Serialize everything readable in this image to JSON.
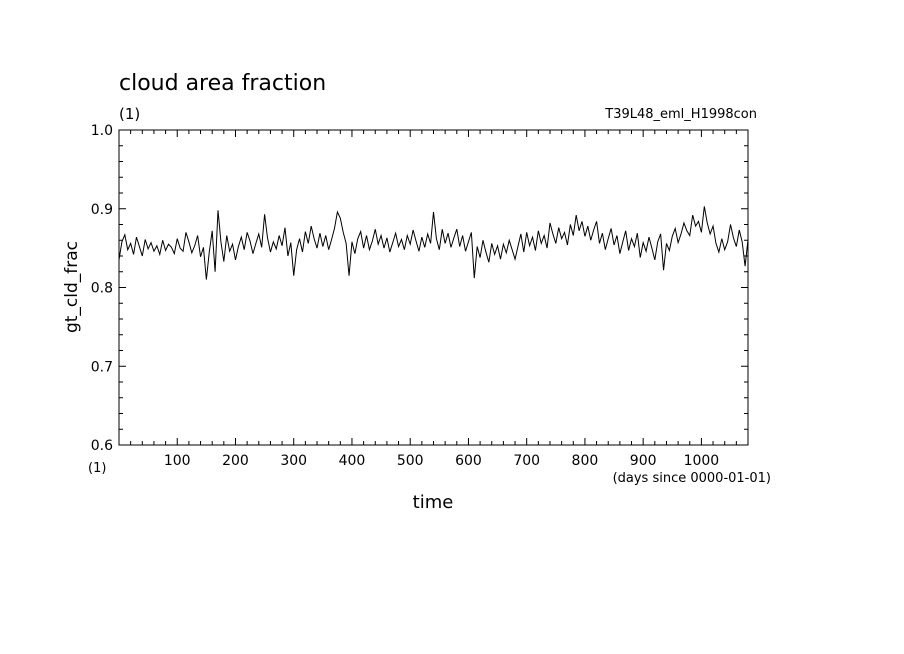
{
  "chart_data": {
    "type": "line",
    "title": "cloud area fraction",
    "subtitle_left": "(1)",
    "subtitle_right": "T39L48_eml_H1998con",
    "xlabel": "time",
    "xunit_left": "(1)",
    "xunit_right": "(days since 0000-01-01)",
    "ylabel": "gt_cld_frac",
    "xlim": [
      0,
      1080
    ],
    "ylim": [
      0.6,
      1.0
    ],
    "xticks": [
      100,
      200,
      300,
      400,
      500,
      600,
      700,
      800,
      900,
      1000
    ],
    "yticks": [
      "0.6",
      "0.7",
      "0.8",
      "0.9",
      "1.0"
    ],
    "grid": false,
    "line_color": "#000000",
    "series": [
      {
        "x": [
          0,
          5,
          10,
          15,
          20,
          25,
          30,
          35,
          40,
          45,
          50,
          55,
          60,
          65,
          70,
          75,
          80,
          85,
          90,
          95,
          100,
          105,
          110,
          115,
          120,
          125,
          130,
          135,
          140,
          145,
          150,
          155,
          160,
          165,
          170,
          175,
          180,
          185,
          190,
          195,
          200,
          205,
          210,
          215,
          220,
          225,
          230,
          235,
          240,
          245,
          250,
          255,
          260,
          265,
          270,
          275,
          280,
          285,
          290,
          295,
          300,
          305,
          310,
          315,
          320,
          325,
          330,
          335,
          340,
          345,
          350,
          355,
          360,
          365,
          370,
          375,
          380,
          385,
          390,
          395,
          400,
          405,
          410,
          415,
          420,
          425,
          430,
          435,
          440,
          445,
          450,
          455,
          460,
          465,
          470,
          475,
          480,
          485,
          490,
          495,
          500,
          505,
          510,
          515,
          520,
          525,
          530,
          535,
          540,
          545,
          550,
          555,
          560,
          565,
          570,
          575,
          580,
          585,
          590,
          595,
          600,
          605,
          610,
          615,
          620,
          625,
          630,
          635,
          640,
          645,
          650,
          655,
          660,
          665,
          670,
          675,
          680,
          685,
          690,
          695,
          700,
          705,
          710,
          715,
          720,
          725,
          730,
          735,
          740,
          745,
          750,
          755,
          760,
          765,
          770,
          775,
          780,
          785,
          790,
          795,
          800,
          805,
          810,
          815,
          820,
          825,
          830,
          835,
          840,
          845,
          850,
          855,
          860,
          865,
          870,
          875,
          880,
          885,
          890,
          895,
          900,
          905,
          910,
          915,
          920,
          925,
          930,
          935,
          940,
          945,
          950,
          955,
          960,
          965,
          970,
          975,
          980,
          985,
          990,
          995,
          1000,
          1005,
          1010,
          1015,
          1020,
          1025,
          1030,
          1035,
          1040,
          1045,
          1050,
          1055,
          1060,
          1065,
          1070,
          1075,
          1080
        ],
        "values": [
          0.835,
          0.858,
          0.867,
          0.848,
          0.856,
          0.842,
          0.864,
          0.852,
          0.84,
          0.861,
          0.849,
          0.857,
          0.846,
          0.853,
          0.842,
          0.86,
          0.847,
          0.855,
          0.851,
          0.843,
          0.862,
          0.85,
          0.846,
          0.87,
          0.858,
          0.844,
          0.853,
          0.866,
          0.839,
          0.851,
          0.81,
          0.845,
          0.872,
          0.82,
          0.898,
          0.858,
          0.833,
          0.866,
          0.846,
          0.855,
          0.835,
          0.852,
          0.864,
          0.848,
          0.87,
          0.859,
          0.843,
          0.856,
          0.868,
          0.851,
          0.893,
          0.863,
          0.845,
          0.858,
          0.849,
          0.866,
          0.853,
          0.876,
          0.84,
          0.857,
          0.815,
          0.848,
          0.862,
          0.845,
          0.871,
          0.856,
          0.878,
          0.862,
          0.85,
          0.869,
          0.852,
          0.866,
          0.848,
          0.861,
          0.875,
          0.896,
          0.888,
          0.87,
          0.856,
          0.815,
          0.858,
          0.843,
          0.862,
          0.871,
          0.85,
          0.866,
          0.848,
          0.859,
          0.874,
          0.855,
          0.866,
          0.85,
          0.863,
          0.845,
          0.857,
          0.869,
          0.852,
          0.861,
          0.848,
          0.866,
          0.855,
          0.873,
          0.859,
          0.846,
          0.864,
          0.851,
          0.868,
          0.856,
          0.896,
          0.862,
          0.848,
          0.874,
          0.856,
          0.869,
          0.851,
          0.863,
          0.874,
          0.852,
          0.866,
          0.846,
          0.858,
          0.87,
          0.812,
          0.852,
          0.838,
          0.86,
          0.845,
          0.832,
          0.856,
          0.842,
          0.853,
          0.836,
          0.855,
          0.844,
          0.86,
          0.848,
          0.836,
          0.852,
          0.868,
          0.845,
          0.87,
          0.853,
          0.864,
          0.847,
          0.872,
          0.856,
          0.866,
          0.85,
          0.882,
          0.868,
          0.856,
          0.876,
          0.862,
          0.87,
          0.854,
          0.88,
          0.866,
          0.892,
          0.872,
          0.884,
          0.865,
          0.878,
          0.86,
          0.873,
          0.884,
          0.856,
          0.869,
          0.848,
          0.862,
          0.875,
          0.854,
          0.866,
          0.843,
          0.858,
          0.872,
          0.847,
          0.862,
          0.852,
          0.869,
          0.838,
          0.857,
          0.846,
          0.864,
          0.85,
          0.835,
          0.858,
          0.868,
          0.822,
          0.856,
          0.847,
          0.865,
          0.875,
          0.857,
          0.868,
          0.882,
          0.872,
          0.866,
          0.892,
          0.878,
          0.884,
          0.87,
          0.903,
          0.882,
          0.868,
          0.878,
          0.856,
          0.845,
          0.862,
          0.848,
          0.858,
          0.88,
          0.863,
          0.852,
          0.873,
          0.858,
          0.827,
          0.861
        ]
      }
    ]
  }
}
